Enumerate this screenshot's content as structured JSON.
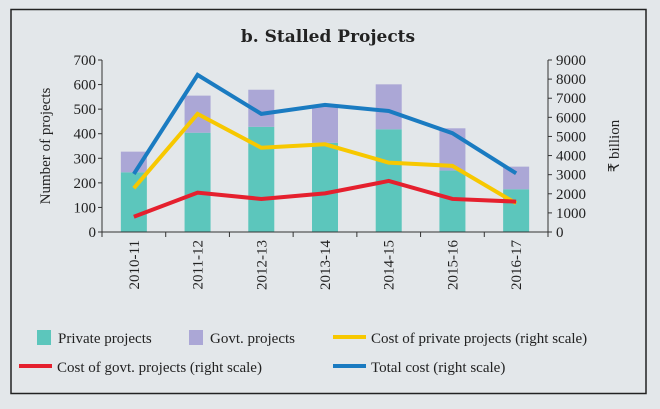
{
  "chart_data": {
    "type": "bar",
    "title": "b. Stalled Projects",
    "ylabel": "Number of projects",
    "ylabel_right": "₹ billion",
    "ylim": [
      0,
      700
    ],
    "ylim_right": [
      0,
      9000
    ],
    "yticks": [
      0,
      100,
      200,
      300,
      400,
      500,
      600,
      700
    ],
    "yticks_right": [
      0,
      1000,
      2000,
      3000,
      4000,
      5000,
      6000,
      7000,
      8000,
      9000
    ],
    "grid": false,
    "legend_position": "bottom",
    "categories": [
      "2010-11",
      "2011-12",
      "2012-13",
      "2013-14",
      "2014-15",
      "2015-16",
      "2016-17"
    ],
    "bar_series": [
      {
        "name": "Private projects",
        "color": "#5cc6bc",
        "values": [
          243,
          404,
          428,
          363,
          418,
          250,
          174
        ]
      },
      {
        "name": "Govt. projects",
        "color": "#aba7d6",
        "values": [
          84,
          151,
          151,
          147,
          183,
          172,
          92
        ]
      }
    ],
    "line_series": [
      {
        "name": "Cost of private projects (right scale)",
        "color": "#f7c800",
        "values": [
          2290,
          6180,
          4410,
          4590,
          3630,
          3460,
          1500
        ]
      },
      {
        "name": "Cost of govt. projects (right scale)",
        "color": "#e5202e",
        "values": [
          800,
          2060,
          1730,
          2020,
          2670,
          1730,
          1590
        ]
      },
      {
        "name": "Total cost (right scale)",
        "color": "#1a7bc1",
        "values": [
          3040,
          8220,
          6180,
          6650,
          6330,
          5170,
          3070
        ]
      }
    ]
  }
}
